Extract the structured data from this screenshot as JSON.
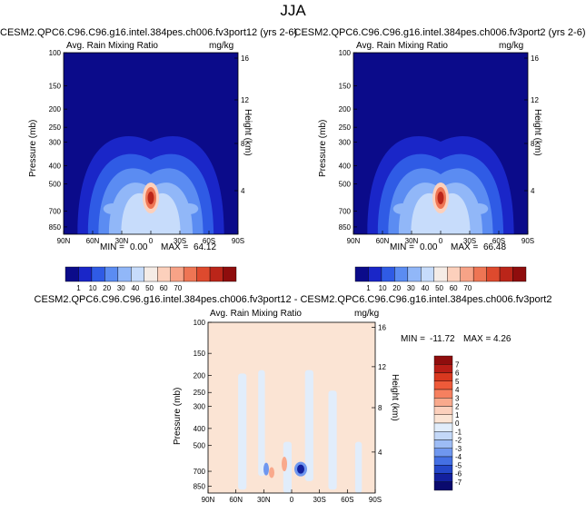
{
  "figure": {
    "title": "JJA"
  },
  "chart_data": [
    {
      "type": "contour",
      "title": "CESM2.QPC6.C96.C96.g16.intel.384pes.ch006.fv3port12 (yrs 2-6)",
      "left_string": "Avg. Rain Mixing Ratio",
      "right_string": "mg/kg",
      "ylabel": "Pressure (mb)",
      "y2label": "Height (km)",
      "x_ticks": [
        "90N",
        "60N",
        "30N",
        "0",
        "30S",
        "60S",
        "90S"
      ],
      "y_ticks": [
        "100",
        "150",
        "200",
        "250",
        "300",
        "400",
        "500",
        "700",
        "850"
      ],
      "y2_ticks": [
        "16",
        "12",
        "8",
        "4"
      ],
      "min_label": "MIN =",
      "min": "0.00",
      "max_label": "MAX =",
      "max": "64.12",
      "levels": [
        "1",
        "10",
        "20",
        "30",
        "40",
        "50",
        "60",
        "70"
      ],
      "colorbar_orientation": "horizontal"
    },
    {
      "type": "contour",
      "title": "CESM2.QPC6.C96.C96.g16.intel.384pes.ch006.fv3port2 (yrs 2-6)",
      "left_string": "Avg. Rain Mixing Ratio",
      "right_string": "mg/kg",
      "ylabel": "Pressure (mb)",
      "y2label": "Height (km)",
      "x_ticks": [
        "90N",
        "60N",
        "30N",
        "0",
        "30S",
        "60S",
        "90S"
      ],
      "y_ticks": [
        "100",
        "150",
        "200",
        "250",
        "300",
        "400",
        "500",
        "700",
        "850"
      ],
      "y2_ticks": [
        "16",
        "12",
        "8",
        "4"
      ],
      "min_label": "MIN =",
      "min": "0.00",
      "max_label": "MAX =",
      "max": "66.48",
      "levels": [
        "1",
        "10",
        "20",
        "30",
        "40",
        "50",
        "60",
        "70"
      ],
      "colorbar_orientation": "horizontal"
    },
    {
      "type": "contour",
      "title": "CESM2.QPC6.C96.C96.g16.intel.384pes.ch006.fv3port12 - CESM2.QPC6.C96.C96.g16.intel.384pes.ch006.fv3port2",
      "left_string": "Avg. Rain Mixing Ratio",
      "right_string": "mg/kg",
      "ylabel": "Pressure (mb)",
      "y2label": "Height (km)",
      "x_ticks": [
        "90N",
        "60N",
        "30N",
        "0",
        "30S",
        "60S",
        "90S"
      ],
      "y_ticks": [
        "100",
        "150",
        "200",
        "250",
        "300",
        "400",
        "500",
        "700",
        "850"
      ],
      "y2_ticks": [
        "16",
        "12",
        "8",
        "4"
      ],
      "min_label": "MIN =",
      "min": "-11.72",
      "max_label": "MAX =",
      "max": "4.26",
      "levels": [
        "7",
        "6",
        "5",
        "4",
        "3",
        "2",
        "1",
        "0",
        "-1",
        "-2",
        "-3",
        "-4",
        "-5",
        "-6",
        "-7"
      ],
      "colorbar_orientation": "vertical"
    }
  ],
  "colors": {
    "abs_scale": [
      "#0b0b8a",
      "#1a26c8",
      "#2f5be5",
      "#5b8cf2",
      "#91b7f8",
      "#c7dcfb",
      "#f5ece6",
      "#fcd0bc",
      "#f7a387",
      "#ee7554",
      "#de4a2e",
      "#bb2519",
      "#8f0d0d"
    ],
    "diff_scale": [
      "#8f0d0d",
      "#b81d16",
      "#d9381f",
      "#ee5a39",
      "#f6805f",
      "#f9a98c",
      "#fcd0bc",
      "#fbe4d4",
      "#e1edfb",
      "#c3d8f8",
      "#9dbcf5",
      "#6f97ef",
      "#4470e4",
      "#2447c9",
      "#13209e",
      "#0a0a6e"
    ],
    "background_low": "#0b0b8a",
    "background_diff": "#fbe4d4"
  }
}
